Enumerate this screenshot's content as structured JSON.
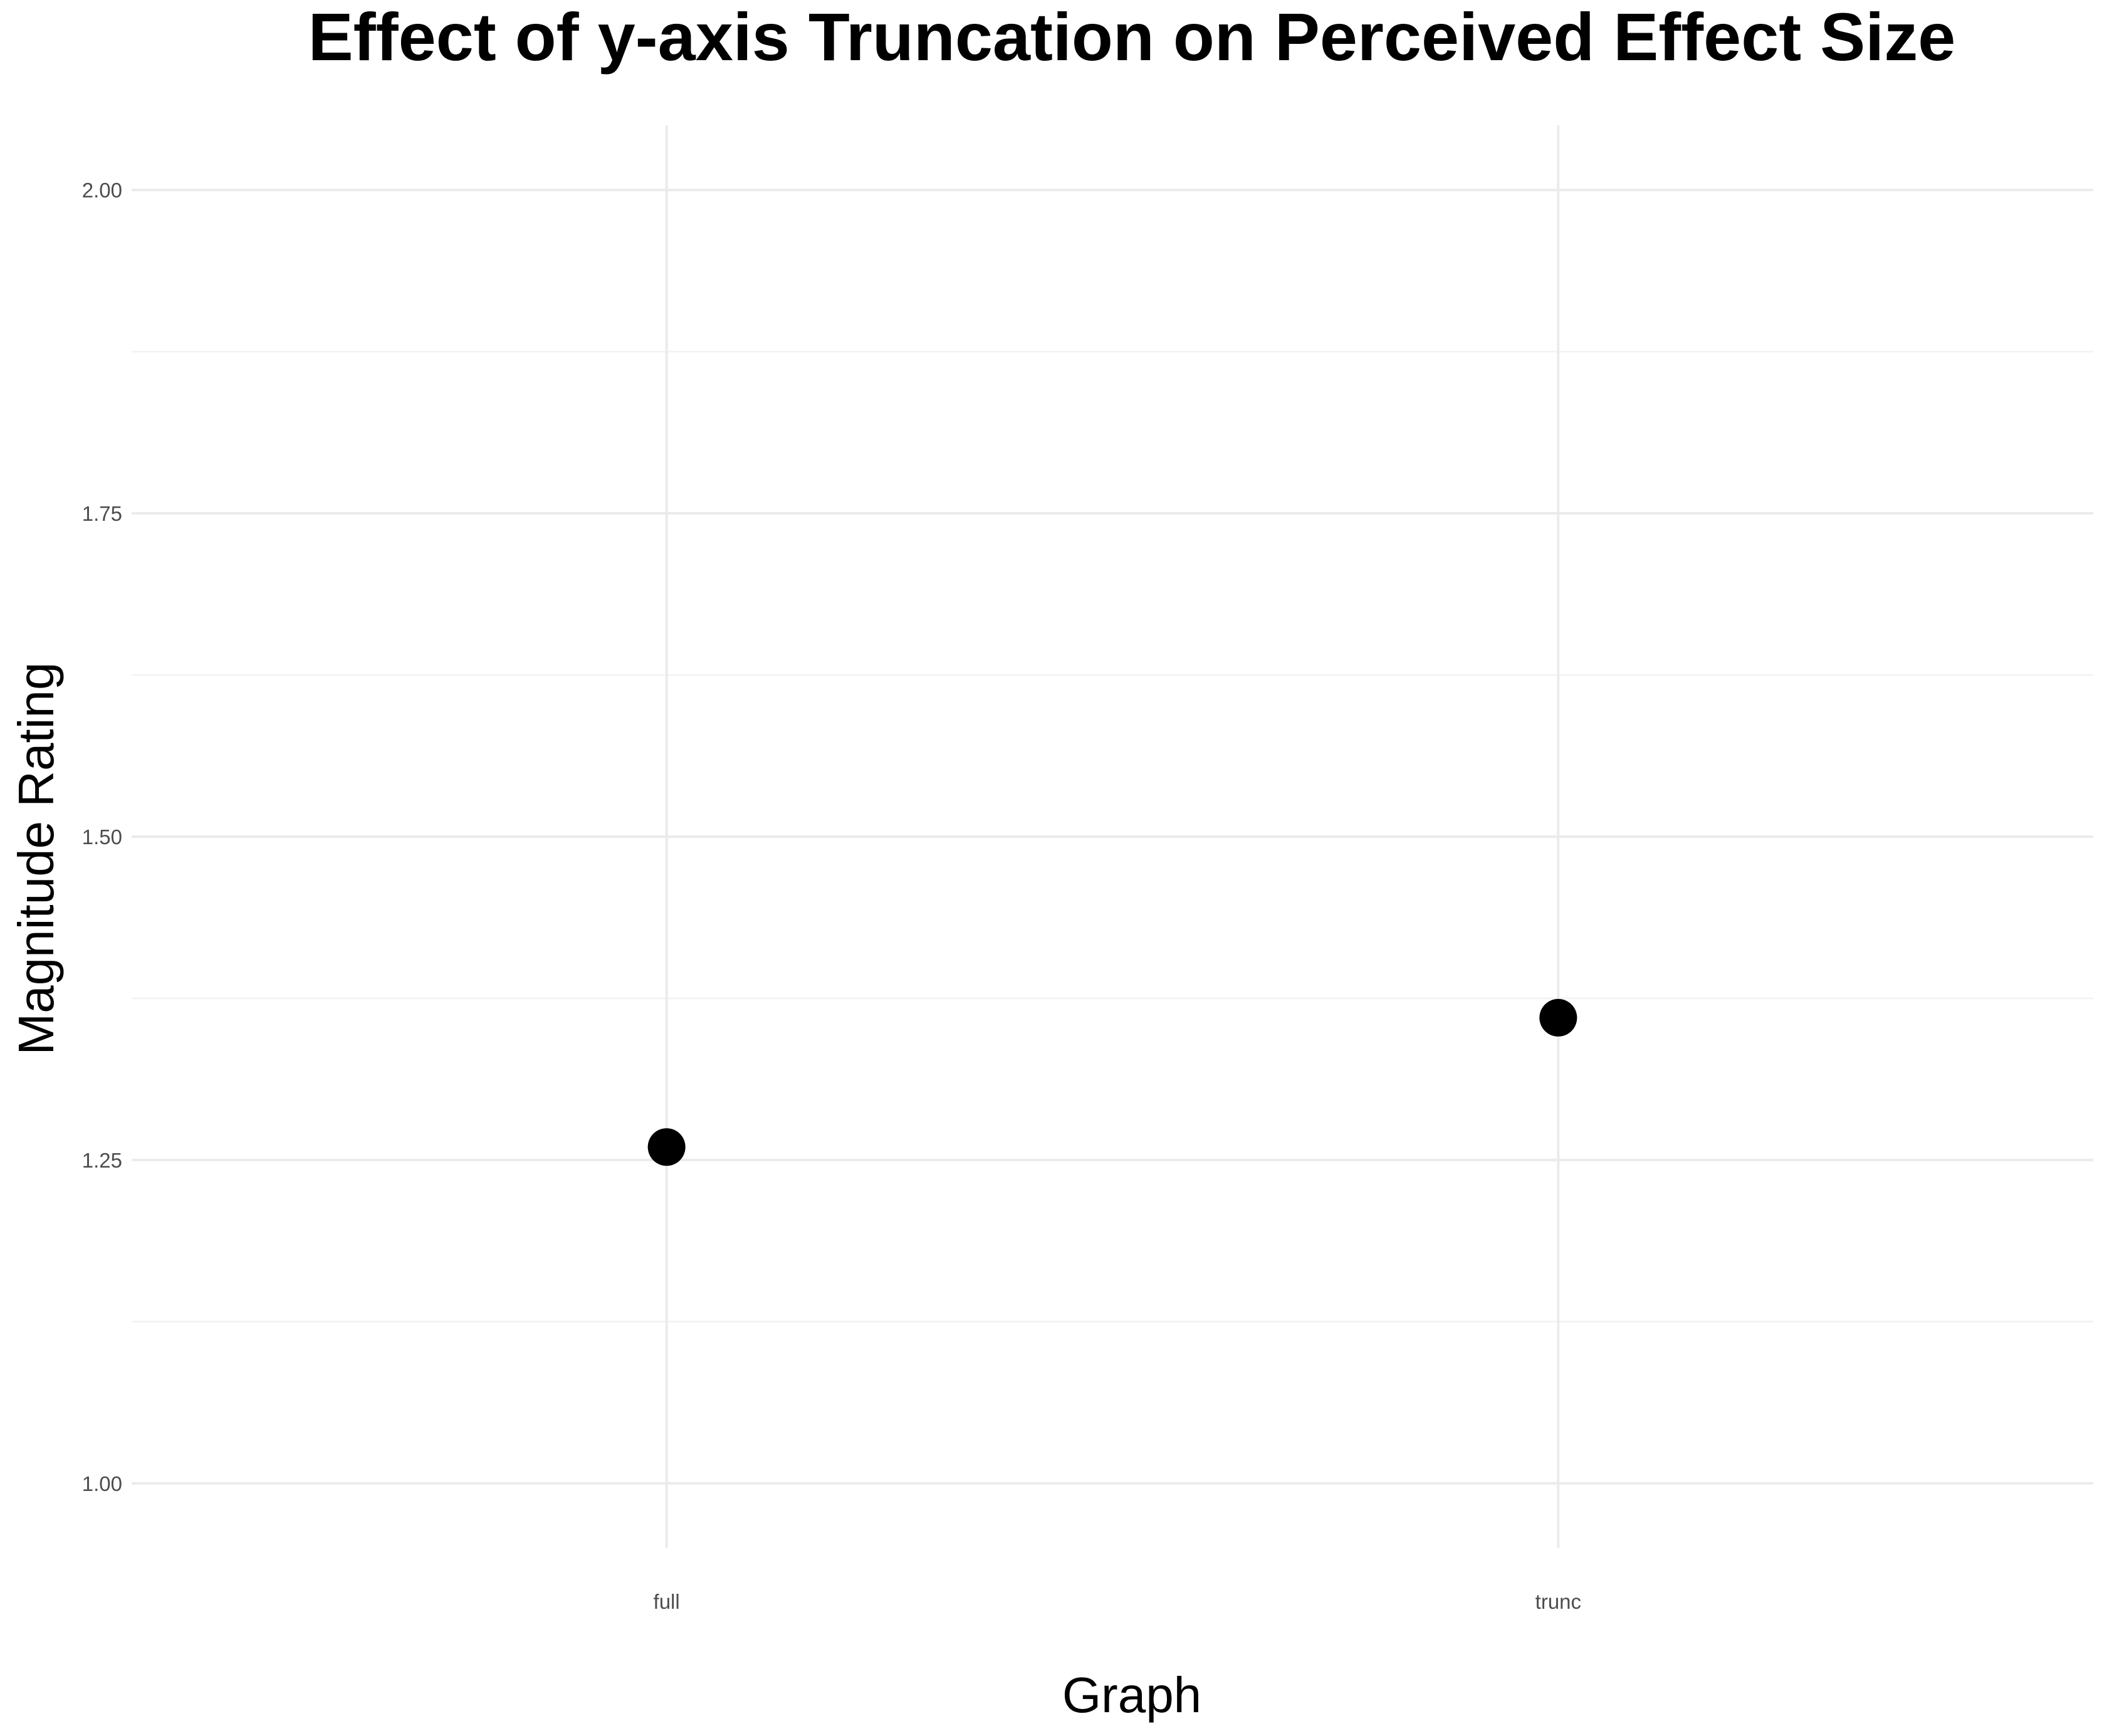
{
  "chart_data": {
    "type": "scatter",
    "title": "Effect of y-axis Truncation on Perceived Effect Size",
    "xlabel": "Graph",
    "ylabel": "Magnitude Rating",
    "categories": [
      "full",
      "trunc"
    ],
    "values": [
      1.26,
      1.36
    ],
    "ylim": [
      0.95,
      2.05
    ],
    "yticks": [
      "1.00",
      "1.25",
      "1.50",
      "1.75",
      "2.00"
    ],
    "grid": true,
    "point_color": "#000000",
    "grid_color": "#ebebeb"
  }
}
